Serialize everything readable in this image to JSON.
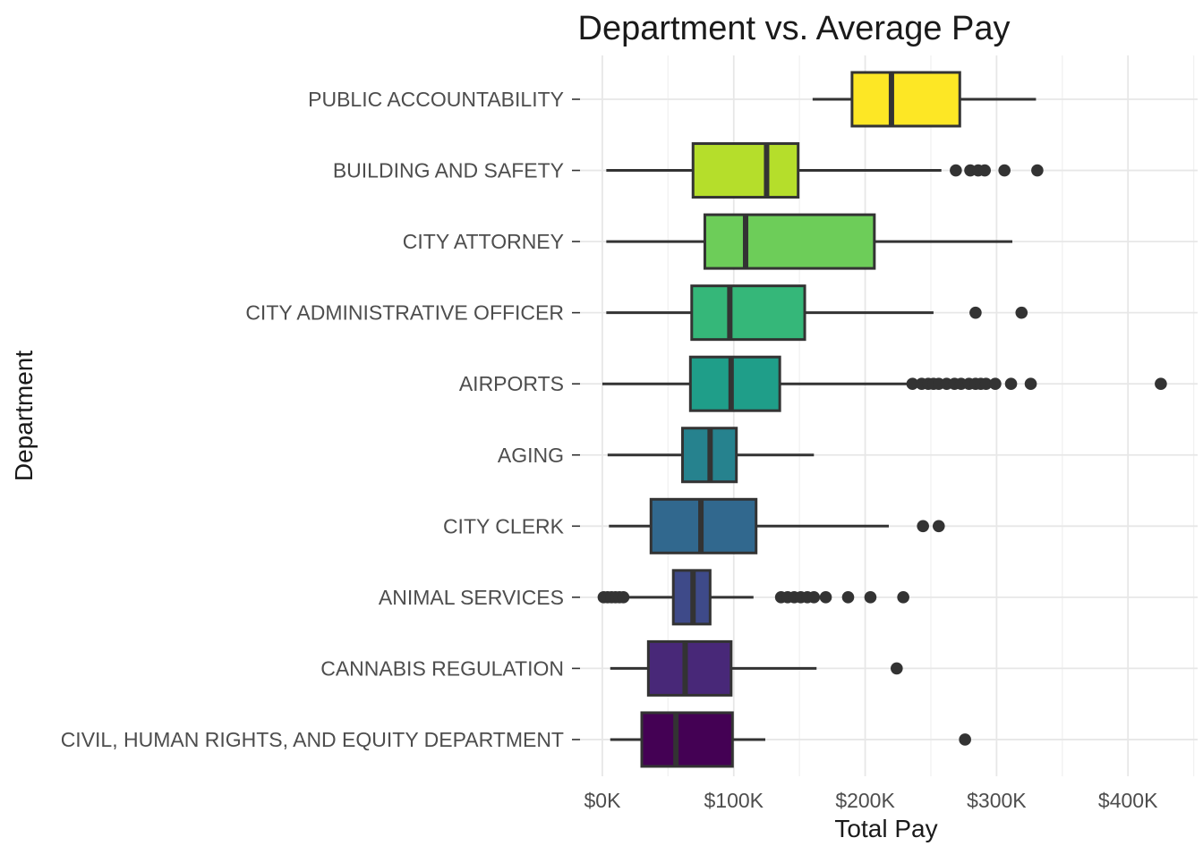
{
  "chart_data": {
    "type": "boxplot",
    "orientation": "horizontal",
    "title": "Department vs. Average Pay",
    "xlabel": "Total Pay",
    "ylabel": "Department",
    "x_unit": "thousand USD",
    "xlim": [
      -17,
      453
    ],
    "x_major_ticks": [
      0,
      100,
      200,
      300,
      400
    ],
    "x_major_tick_labels": [
      "$0K",
      "$100K",
      "$200K",
      "$300K",
      "$400K"
    ],
    "x_minor_ticks": [
      50,
      150,
      250,
      350,
      450
    ],
    "grid": true,
    "legend": "none",
    "palette": "viridis",
    "categories": [
      "PUBLIC ACCOUNTABILITY",
      "BUILDING AND SAFETY",
      "CITY ATTORNEY",
      "CITY ADMINISTRATIVE OFFICER",
      "AIRPORTS",
      "AGING",
      "CITY CLERK",
      "ANIMAL SERVICES",
      "CANNABIS REGULATION",
      "CIVIL, HUMAN RIGHTS, AND EQUITY DEPARTMENT"
    ],
    "series": [
      {
        "name": "PUBLIC ACCOUNTABILITY",
        "color": "#FDE725",
        "whisker_low": 160,
        "q1": 190,
        "median": 220,
        "q3": 272,
        "whisker_high": 330,
        "outliers": []
      },
      {
        "name": "BUILDING AND SAFETY",
        "color": "#B5DE2B",
        "whisker_low": 3,
        "q1": 69,
        "median": 125,
        "q3": 149,
        "whisker_high": 258,
        "outliers": [
          269,
          280,
          286,
          291,
          306,
          331
        ]
      },
      {
        "name": "CITY ATTORNEY",
        "color": "#6DCD59",
        "whisker_low": 3,
        "q1": 78,
        "median": 109,
        "q3": 207,
        "whisker_high": 312,
        "outliers": []
      },
      {
        "name": "CITY ADMINISTRATIVE OFFICER",
        "color": "#35B779",
        "whisker_low": 3,
        "q1": 68,
        "median": 97,
        "q3": 154,
        "whisker_high": 252,
        "outliers": [
          284,
          319
        ]
      },
      {
        "name": "AIRPORTS",
        "color": "#1F9E89",
        "whisker_low": 0,
        "q1": 67,
        "median": 98,
        "q3": 135,
        "whisker_high": 234,
        "outliers": [
          236,
          243,
          248,
          252,
          256,
          262,
          268,
          273,
          279,
          284,
          288,
          292,
          299,
          311,
          326,
          425
        ]
      },
      {
        "name": "AGING",
        "color": "#26828E",
        "whisker_low": 4,
        "q1": 61,
        "median": 82,
        "q3": 102,
        "whisker_high": 161,
        "outliers": []
      },
      {
        "name": "CITY CLERK",
        "color": "#31688E",
        "whisker_low": 5,
        "q1": 37,
        "median": 75,
        "q3": 117,
        "whisker_high": 218,
        "outliers": [
          244,
          256
        ]
      },
      {
        "name": "ANIMAL SERVICES",
        "color": "#3E4A89",
        "whisker_low": 20,
        "q1": 54,
        "median": 69,
        "q3": 82,
        "whisker_high": 115,
        "outliers": [
          1,
          4,
          7,
          10,
          13,
          16,
          136,
          141,
          146,
          151,
          156,
          161,
          170,
          187,
          204,
          229
        ]
      },
      {
        "name": "CANNABIS REGULATION",
        "color": "#482878",
        "whisker_low": 6,
        "q1": 35,
        "median": 63,
        "q3": 98,
        "whisker_high": 163,
        "outliers": [
          224
        ]
      },
      {
        "name": "CIVIL, HUMAN RIGHTS, AND EQUITY DEPARTMENT",
        "color": "#440154",
        "whisker_low": 6,
        "q1": 30,
        "median": 56,
        "q3": 99,
        "whisker_high": 124,
        "outliers": [
          276
        ]
      }
    ]
  },
  "style_colors": {
    "box_stroke": "#333333",
    "outlier": "#333333",
    "grid_major": "#E7E7E7",
    "grid_minor": "#F2F2F2",
    "tick_mark": "#333333",
    "title_text": "#1A1A1A",
    "tick_text": "#4D4D4D"
  }
}
